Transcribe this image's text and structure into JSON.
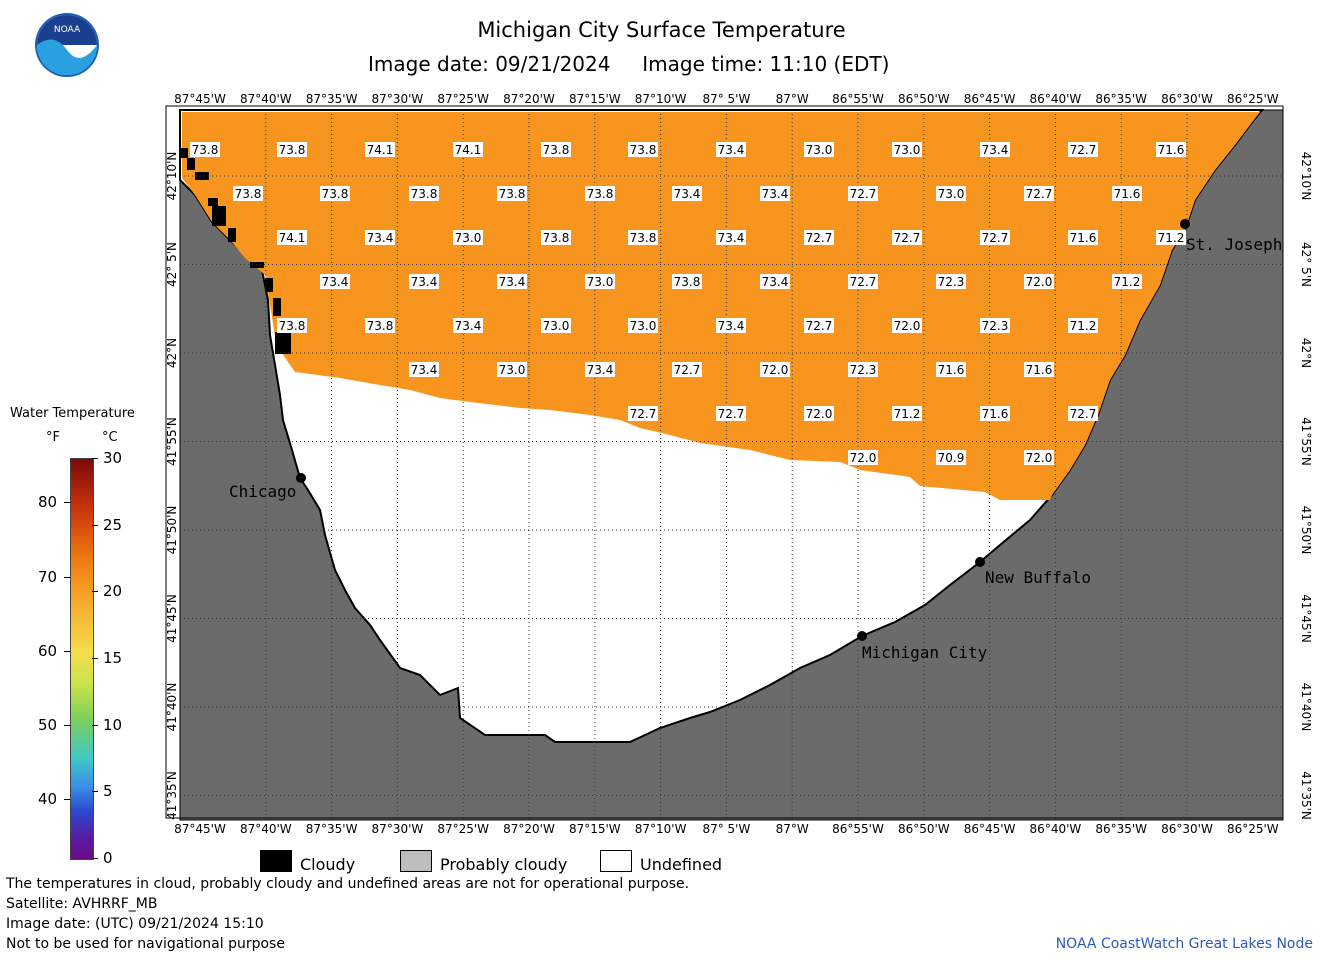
{
  "header": {
    "title": "Michigan City Surface Temperature",
    "image_date_label": "Image date: 09/21/2024",
    "image_time_label": "Image time: 11:10 (EDT)",
    "logo_text": "NOAA"
  },
  "map": {
    "lon_labels": [
      "87°45'W",
      "87°40'W",
      "87°35'W",
      "87°30'W",
      "87°25'W",
      "87°20'W",
      "87°15'W",
      "87°10'W",
      "87° 5'W",
      "87°W",
      "86°55'W",
      "86°50'W",
      "86°45'W",
      "86°40'W",
      "86°35'W",
      "86°30'W",
      "86°25'W"
    ],
    "lat_labels": [
      "42°10'N",
      "42° 5'N",
      "42°N",
      "41°55'N",
      "41°50'N",
      "41°45'N",
      "41°40'N",
      "41°35'N"
    ],
    "places": [
      {
        "name": "Chicago"
      },
      {
        "name": "St. Joseph"
      },
      {
        "name": "New Buffalo"
      },
      {
        "name": "Michigan City"
      }
    ],
    "temperature_rows": [
      [
        "73.8",
        "73.8",
        "74.1",
        "74.1",
        "73.8",
        "73.8",
        "73.4",
        "73.0",
        "73.0",
        "73.4",
        "72.7",
        "71.6"
      ],
      [
        "73.8",
        "73.8",
        "73.8",
        "73.8",
        "73.8",
        "73.4",
        "73.4",
        "72.7",
        "73.0",
        "72.7",
        "71.6"
      ],
      [
        "74.1",
        "73.4",
        "73.0",
        "73.8",
        "73.8",
        "73.4",
        "72.7",
        "72.7",
        "72.7",
        "71.6",
        "71.2"
      ],
      [
        "73.4",
        "73.4",
        "73.4",
        "73.0",
        "73.8",
        "73.4",
        "72.7",
        "72.3",
        "72.0",
        "71.2"
      ],
      [
        "73.8",
        "73.8",
        "73.4",
        "73.0",
        "73.0",
        "73.4",
        "72.7",
        "72.0",
        "72.3",
        "71.2"
      ],
      [
        "73.4",
        "73.0",
        "73.4",
        "72.7",
        "72.0",
        "72.3",
        "71.6",
        "71.6"
      ],
      [
        "72.7",
        "72.7",
        "72.0",
        "71.2",
        "71.6",
        "72.7"
      ],
      [
        "72.0",
        "70.9",
        "72.0"
      ]
    ],
    "colors": {
      "water": "#f7951e",
      "land": "#6b6b6b",
      "undefined": "#ffffff",
      "cloudy": "#000000"
    }
  },
  "legend": {
    "title": "Water Temperature",
    "unit_f": "°F",
    "unit_c": "°C",
    "f_ticks": [
      "80",
      "70",
      "60",
      "50",
      "40"
    ],
    "c_ticks": [
      "30",
      "25",
      "20",
      "15",
      "10",
      "5",
      "0"
    ]
  },
  "key": {
    "cloudy": "Cloudy",
    "probably_cloudy": "Probably cloudy",
    "undefined": "Undefined"
  },
  "footer": {
    "note": "The temperatures in cloud, probably cloudy and undefined areas are not for operational purpose.",
    "satellite": "Satellite: AVHRRF_MB",
    "utc_date": "Image date: (UTC) 09/21/2024  15:10",
    "nav_warning": "Not to be used for navigational purpose",
    "credit": "NOAA CoastWatch Great Lakes Node"
  }
}
